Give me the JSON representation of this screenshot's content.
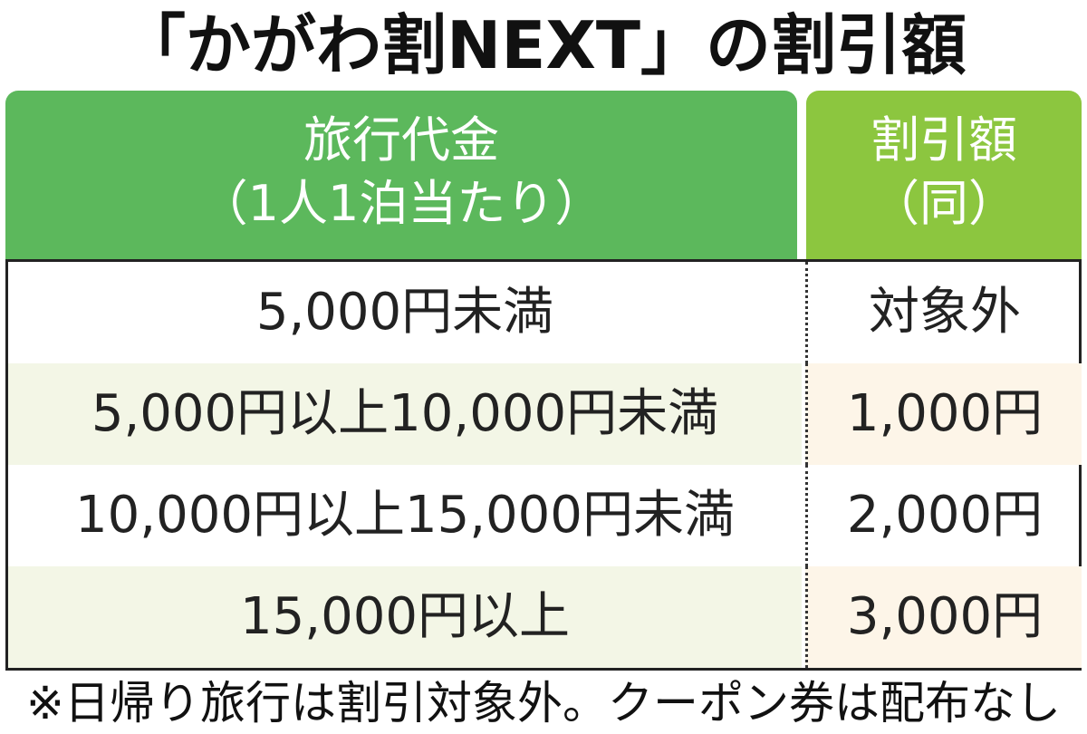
{
  "title": "「かがわ割NEXT」の割引額",
  "table": {
    "header": [
      [
        "旅行代金",
        "（1人1泊当たり）"
      ],
      [
        "割引額",
        "（同）"
      ]
    ],
    "rows": [
      [
        "5,000円未満",
        "対象外"
      ],
      [
        "5,000円以上10,000円未満",
        "1,000円"
      ],
      [
        "10,000円以上15,000円未満",
        "2,000円"
      ],
      [
        "15,000円以上",
        "3,000円"
      ]
    ]
  },
  "note": "※日帰り旅行は割引対象外。クーポン券は配布なし"
}
